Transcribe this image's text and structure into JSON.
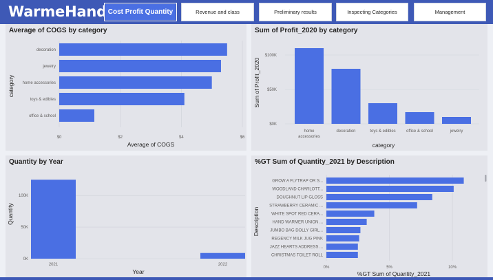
{
  "app": {
    "brand": "WarmeHands",
    "accent": "#4a6fe3",
    "header_color": "#3e59b6"
  },
  "nav": {
    "tabs": [
      {
        "label": "Cost Profit Quantity",
        "active": true
      },
      {
        "label": "Revenue and class",
        "active": false
      },
      {
        "label": "Preliminary results",
        "active": false
      },
      {
        "label": "Inspecting Categories",
        "active": false
      },
      {
        "label": "Management",
        "active": false
      }
    ]
  },
  "chart_data": [
    {
      "id": "cogs",
      "type": "bar",
      "orientation": "horizontal",
      "title": "Average of COGS by category",
      "xlabel": "Average of COGS",
      "ylabel": "category",
      "categories": [
        "decoration",
        "jewelry",
        "home accessories",
        "toys & edibles",
        "office & school"
      ],
      "values": [
        5.5,
        5.3,
        5.0,
        4.1,
        1.15
      ],
      "xlim": [
        0,
        6
      ],
      "ticks": [
        0,
        2,
        4,
        6
      ],
      "tick_labels": [
        "$0",
        "$2",
        "$4",
        "$6"
      ]
    },
    {
      "id": "profit",
      "type": "bar",
      "orientation": "vertical",
      "title": "Sum of Profit_2020 by category",
      "xlabel": "category",
      "ylabel": "Sum of Profit_2020",
      "categories": [
        [
          "home",
          "accessories"
        ],
        [
          "decoration"
        ],
        [
          "toys & edibles"
        ],
        [
          "office & school"
        ],
        [
          "jewelry"
        ]
      ],
      "values": [
        110000,
        80000,
        30000,
        17000,
        10000
      ],
      "ylim": [
        0,
        120000
      ],
      "ticks": [
        0,
        50000,
        100000
      ],
      "tick_labels": [
        "$0K",
        "$50K",
        "$100K"
      ]
    },
    {
      "id": "quantity",
      "type": "bar",
      "orientation": "vertical",
      "title": "Quantity by Year",
      "xlabel": "Year",
      "ylabel": "Quantity",
      "categories": [
        "2021",
        "2022"
      ],
      "values": [
        125000,
        9000
      ],
      "ylim": [
        0,
        135000
      ],
      "ticks": [
        0,
        50000,
        100000
      ],
      "tick_labels": [
        "0K",
        "50K",
        "100K"
      ]
    },
    {
      "id": "gt",
      "type": "bar",
      "orientation": "horizontal",
      "title": "%GT Sum of Quantity_2021 by Description",
      "xlabel": "%GT Sum of Quantity_2021",
      "ylabel": "Description",
      "categories": [
        "GROW A FLYTRAP OR S...",
        "WOODLAND CHARLOTT...",
        "DOUGHNUT LIP GLOSS",
        "STRAWBERRY CERAMIC ...",
        "WHITE SPOT RED CERA...",
        "HAND WARMER UNION ...",
        "JUMBO BAG DOLLY GIRL...",
        "REGENCY MILK JUG PINK",
        "JAZZ HEARTS ADDRESS ...",
        "CHRISTMAS TOILET ROLL"
      ],
      "values": [
        10.9,
        10.1,
        8.4,
        7.2,
        3.8,
        3.2,
        2.7,
        2.6,
        2.5,
        2.5
      ],
      "xlim": [
        0,
        12.4
      ],
      "ticks": [
        0,
        5,
        10
      ],
      "tick_labels": [
        "0%",
        "5%",
        "10%"
      ]
    }
  ]
}
